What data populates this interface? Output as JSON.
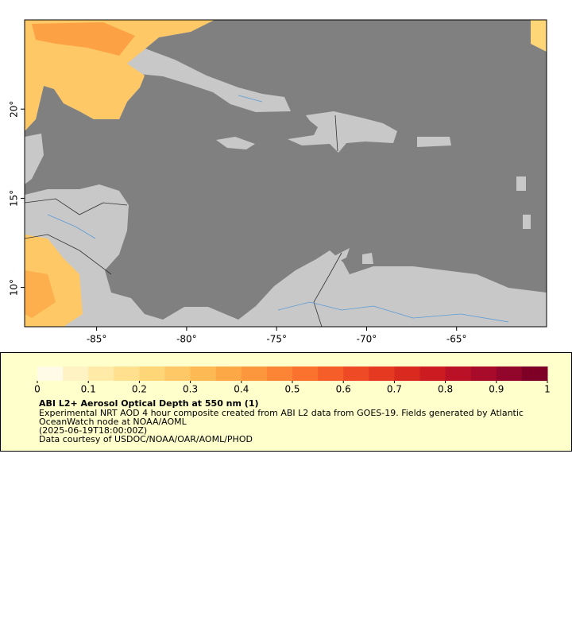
{
  "chart_data": {
    "type": "map",
    "xlim": [
      -89,
      -60
    ],
    "ylim": [
      7.8,
      25
    ],
    "xticks": [
      {
        "value": -85,
        "label": "-85°"
      },
      {
        "value": -80,
        "label": "-80°"
      },
      {
        "value": -75,
        "label": "-75°"
      },
      {
        "value": -70,
        "label": "-70°"
      },
      {
        "value": -65,
        "label": "-65°"
      }
    ],
    "yticks": [
      {
        "value": 10,
        "label": "10°"
      },
      {
        "value": 15,
        "label": "15°"
      },
      {
        "value": 20,
        "label": "20°"
      }
    ],
    "colorbar": {
      "clim": [
        0,
        1
      ],
      "ticks": [
        0,
        0.1,
        0.2,
        0.3,
        0.4,
        0.5,
        0.6,
        0.7,
        0.8,
        0.9,
        1
      ],
      "colors": [
        "#fffbe6",
        "#fff3c4",
        "#ffeaa8",
        "#fee08f",
        "#fed678",
        "#fdc865",
        "#fdb954",
        "#fda847",
        "#fc973d",
        "#fc8535",
        "#fa722e",
        "#f55e29",
        "#ee4a25",
        "#e53a21",
        "#da2a1f",
        "#cc1c22",
        "#bb1126",
        "#a80a2a",
        "#93062b",
        "#7f0026"
      ]
    },
    "title": "ABI L2+ Aerosol Optical Depth at 550 nm (1)",
    "subtitle": "Experimental NRT AOD 4 hour composite created from ABI L2 data from GOES-19. Fields generated by Atlantic OceanWatch node at NOAA/AOML",
    "date": "(2025-06-19T18:00:00Z)",
    "credit": "Data courtesy of USDOC/NOAA/OAR/AOML/PHOD"
  }
}
